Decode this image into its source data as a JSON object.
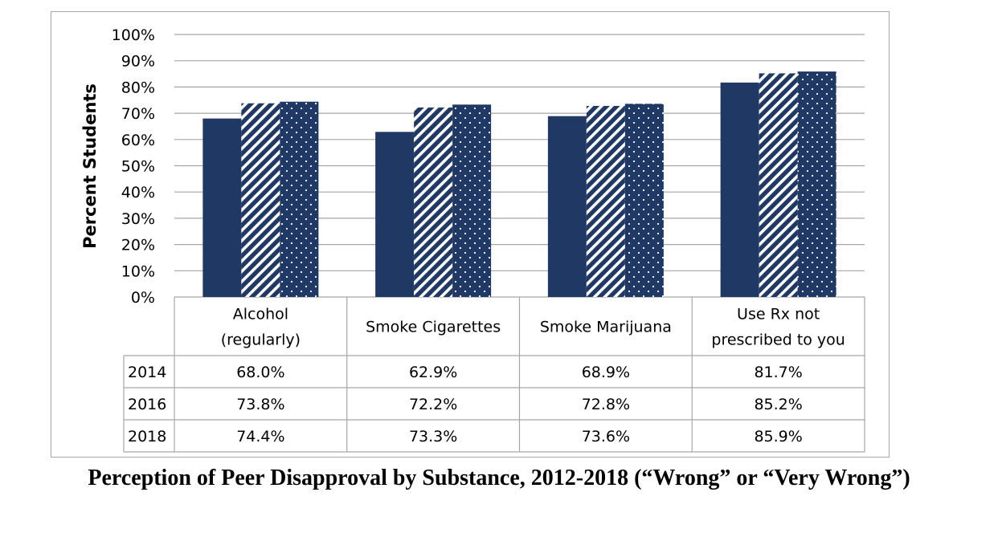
{
  "caption": "Perception of Peer Disapproval by Substance, 2012-2018 (“Wrong” or “Very Wrong”)",
  "colors": {
    "bar": "#203864",
    "grid": "#a6a6a6",
    "pattern_fg": "#ffffff"
  },
  "chart_data": {
    "type": "bar",
    "title": "Perception of Peer Disapproval by Substance, 2012-2018 (“Wrong” or “Very Wrong”)",
    "ylabel": "Percent Students",
    "xlabel": "",
    "ylim": [
      0,
      100
    ],
    "yticks": [
      "0%",
      "10%",
      "20%",
      "30%",
      "40%",
      "50%",
      "60%",
      "70%",
      "80%",
      "90%",
      "100%"
    ],
    "categories": [
      [
        "Alcohol",
        "(regularly)"
      ],
      [
        "Smoke Cigarettes"
      ],
      [
        "Smoke Marijuana"
      ],
      [
        "Use Rx not",
        "prescribed to you"
      ]
    ],
    "series": [
      {
        "name": "2014",
        "pattern": "solid",
        "values": [
          68.0,
          62.9,
          68.9,
          81.7
        ],
        "labels": [
          "68.0%",
          "62.9%",
          "68.9%",
          "81.7%"
        ]
      },
      {
        "name": "2016",
        "pattern": "diagonal-stripes",
        "values": [
          73.8,
          72.2,
          72.8,
          85.2
        ],
        "labels": [
          "73.8%",
          "72.2%",
          "72.8%",
          "85.2%"
        ]
      },
      {
        "name": "2018",
        "pattern": "dots",
        "values": [
          74.4,
          73.3,
          73.6,
          85.9
        ],
        "labels": [
          "74.4%",
          "73.3%",
          "73.6%",
          "85.9%"
        ]
      }
    ],
    "grid": true,
    "legend": "data-table"
  }
}
